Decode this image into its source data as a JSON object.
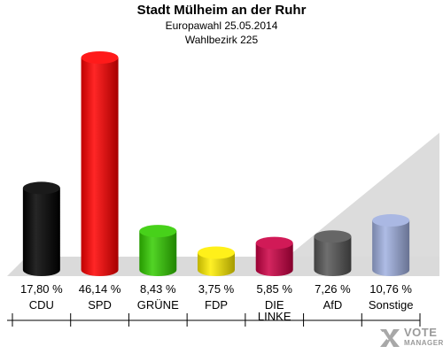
{
  "header": {
    "title": "Stadt Mülheim an der Ruhr",
    "subtitle": "Europawahl 25.05.2014",
    "subtitle2": "Wahlbezirk 225"
  },
  "logo": {
    "line1": "VOTE",
    "line2": "MANAGER"
  },
  "chart_data": {
    "type": "bar",
    "title": "Stadt Mülheim an der Ruhr",
    "subtitle": "Europawahl 25.05.2014 / Wahlbezirk 225",
    "categories": [
      "CDU",
      "SPD",
      "GRÜNE",
      "FDP",
      "DIE LINKE",
      "AfD",
      "Sonstige"
    ],
    "category_lines": [
      [
        "CDU"
      ],
      [
        "SPD"
      ],
      [
        "GRÜNE"
      ],
      [
        "FDP"
      ],
      [
        "DIE",
        "LINKE"
      ],
      [
        "AfD"
      ],
      [
        "Sonstige"
      ]
    ],
    "values": [
      17.8,
      46.14,
      8.43,
      3.75,
      5.85,
      7.26,
      10.76
    ],
    "value_labels": [
      "17,80 %",
      "46,14 %",
      "8,43 %",
      "3,75 %",
      "5,85 %",
      "7,26 %",
      "10,76 %"
    ],
    "colors": [
      "#000000",
      "#ff0000",
      "#33cc00",
      "#ffee00",
      "#cc0044",
      "#555555",
      "#a0b0e0"
    ],
    "ylim": [
      0,
      46.14
    ],
    "grid": false,
    "legend": "none"
  }
}
